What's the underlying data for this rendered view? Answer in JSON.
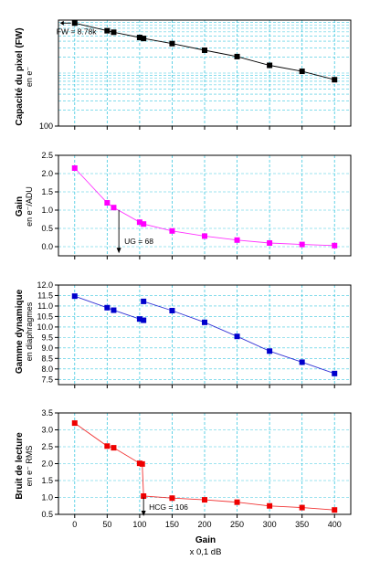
{
  "chart_data": [
    {
      "type": "scatter",
      "panel": "fw",
      "ylabel": "Capacité du pixel (FW)",
      "ylabel_sub": "en e⁻",
      "yscale": "log",
      "ylim": [
        100,
        10000
      ],
      "yticks": [
        {
          "v": 100,
          "label": "100"
        }
      ],
      "color": "#000000",
      "x": [
        0,
        50,
        60,
        100,
        106,
        150,
        200,
        250,
        300,
        350,
        400
      ],
      "values": [
        8780,
        6300,
        5900,
        4700,
        4500,
        3600,
        2700,
        2050,
        1400,
        1080,
        750
      ],
      "annotation": {
        "text": "FW = 8.78k",
        "x": 0,
        "y": 8780
      }
    },
    {
      "type": "scatter",
      "panel": "gain",
      "ylabel": "Gain",
      "ylabel_sub": "en e⁻/ADU",
      "ylim": [
        -0.25,
        2.5
      ],
      "yticks": [
        {
          "v": 0,
          "label": "0.0"
        },
        {
          "v": 0.5,
          "label": "0.5"
        },
        {
          "v": 1,
          "label": "1.0"
        },
        {
          "v": 1.5,
          "label": "1.5"
        },
        {
          "v": 2,
          "label": "2.0"
        },
        {
          "v": 2.5,
          "label": "2.5"
        }
      ],
      "color": "#ff00ff",
      "x": [
        0,
        50,
        60,
        100,
        106,
        150,
        200,
        250,
        300,
        350,
        400
      ],
      "values": [
        2.15,
        1.2,
        1.07,
        0.67,
        0.62,
        0.43,
        0.29,
        0.18,
        0.1,
        0.06,
        0.03
      ],
      "annotation": {
        "text": "UG = 68",
        "x": 68,
        "y": 1.0
      }
    },
    {
      "type": "scatter",
      "panel": "dr",
      "ylabel": "Gamme dynamique",
      "ylabel_sub": "en diaphragmes",
      "ylim": [
        7.25,
        12.0
      ],
      "yticks": [
        {
          "v": 7.5,
          "label": "7.5"
        },
        {
          "v": 8.0,
          "label": "8.0"
        },
        {
          "v": 8.5,
          "label": "8.5"
        },
        {
          "v": 9.0,
          "label": "9.0"
        },
        {
          "v": 9.5,
          "label": "9.5"
        },
        {
          "v": 10.0,
          "label": "10.0"
        },
        {
          "v": 10.5,
          "label": "10.5"
        },
        {
          "v": 11.0,
          "label": "11.0"
        },
        {
          "v": 11.5,
          "label": "11.5"
        },
        {
          "v": 12.0,
          "label": "12.0"
        }
      ],
      "color": "#0000cc",
      "x": [
        0,
        50,
        60,
        100,
        106,
        106,
        150,
        200,
        250,
        300,
        350,
        400
      ],
      "values": [
        11.47,
        10.92,
        10.8,
        10.38,
        10.32,
        11.22,
        10.78,
        10.22,
        9.55,
        8.85,
        8.32,
        7.78
      ]
    },
    {
      "type": "scatter",
      "panel": "rn",
      "ylabel": "Bruit de lecture",
      "ylabel_sub": "en e⁻ RMS",
      "ylim": [
        0.5,
        3.5
      ],
      "yticks": [
        {
          "v": 0.5,
          "label": "0.5"
        },
        {
          "v": 1.0,
          "label": "1.0"
        },
        {
          "v": 1.5,
          "label": "1.5"
        },
        {
          "v": 2.0,
          "label": "2.0"
        },
        {
          "v": 2.5,
          "label": "2.5"
        },
        {
          "v": 3.0,
          "label": "3.0"
        },
        {
          "v": 3.5,
          "label": "3.5"
        }
      ],
      "color": "#ee0000",
      "x": [
        0,
        50,
        60,
        100,
        104,
        106,
        150,
        200,
        250,
        300,
        350,
        400
      ],
      "values": [
        3.2,
        2.52,
        2.47,
        2.01,
        1.99,
        1.04,
        0.98,
        0.93,
        0.86,
        0.75,
        0.7,
        0.63
      ],
      "annotation": {
        "text": "HCG = 106",
        "x": 106,
        "y": 1.0
      }
    }
  ],
  "x_axis": {
    "xlabel": "Gain",
    "xlabel_sub": "x 0,1 dB",
    "xlim": [
      -25,
      425
    ],
    "xticks": [
      0,
      50,
      100,
      150,
      200,
      250,
      300,
      350,
      400
    ],
    "xtick_labels": [
      "0",
      "50",
      "100",
      "150",
      "200",
      "250",
      "300",
      "350",
      "400"
    ],
    "grid_color": "#3ec8e0"
  }
}
